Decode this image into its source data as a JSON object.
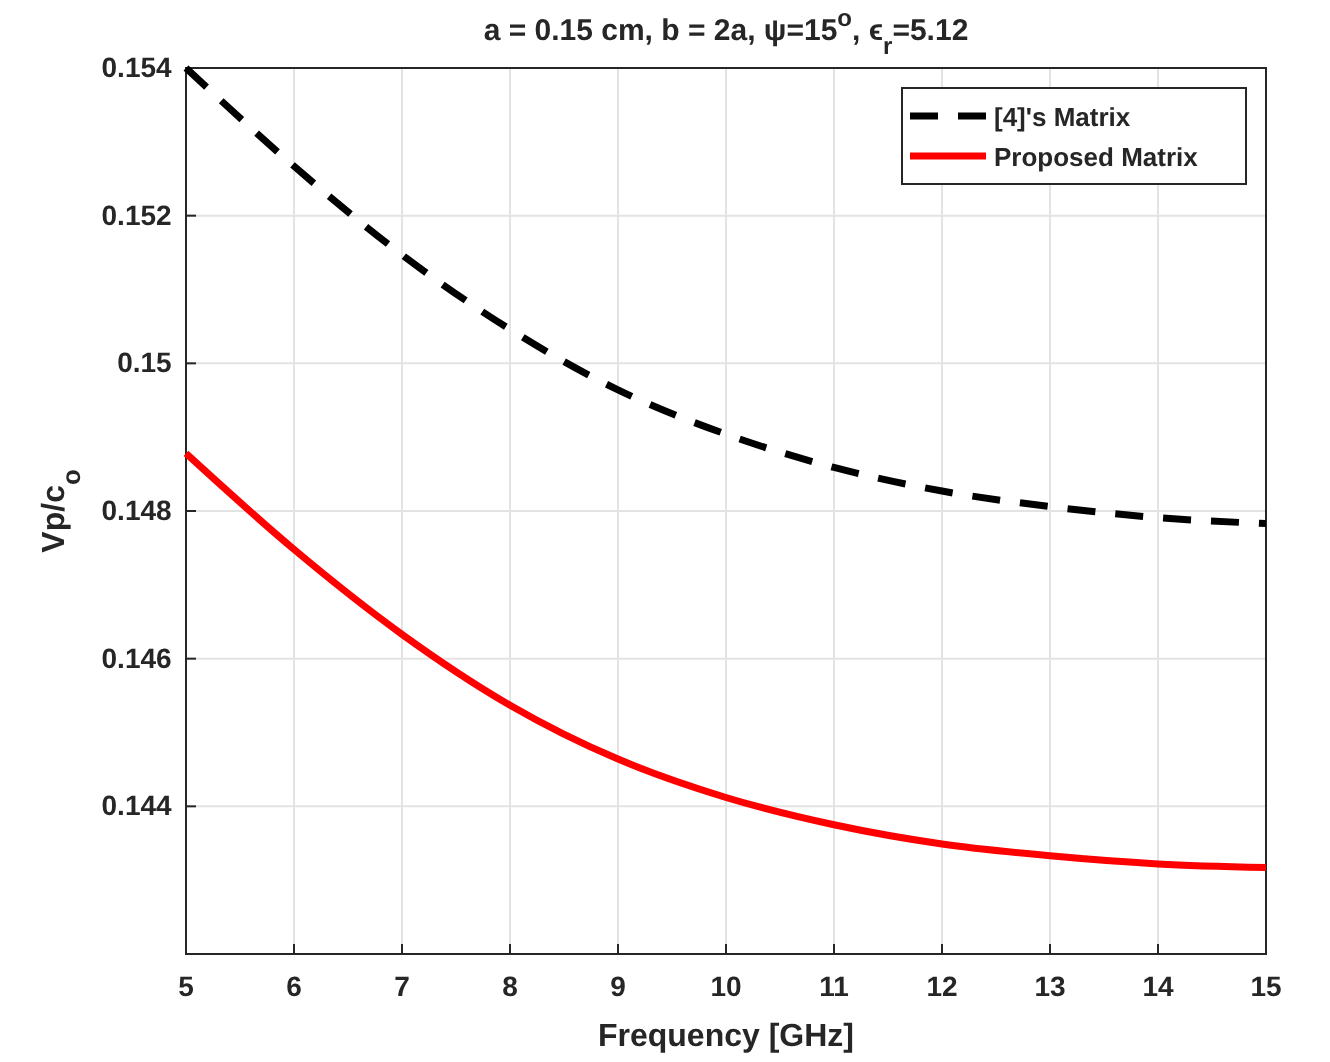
{
  "chart_data": {
    "type": "line",
    "title": "a = 0.15 cm, b = 2a, ψ=15$^{o}$, ϵ$_{r}$=5.12",
    "xlabel": "Frequency [GHz]",
    "ylabel": "Vp/c$_{o}$",
    "x": [
      5,
      6,
      7,
      8,
      9,
      10,
      11,
      12,
      13,
      14,
      15
    ],
    "series": [
      {
        "name": "[4]'s Matrix",
        "color": "#000000",
        "line_style": "dashed",
        "values": [
          0.154,
          0.15267,
          0.15147,
          0.15046,
          0.14964,
          0.14904,
          0.14859,
          0.14827,
          0.14806,
          0.14791,
          0.14783
        ]
      },
      {
        "name": "Proposed Matrix",
        "color": "#ff0000",
        "line_style": "solid",
        "values": [
          0.14878,
          0.14748,
          0.14633,
          0.14537,
          0.14464,
          0.14412,
          0.14375,
          0.14349,
          0.14333,
          0.14322,
          0.14317
        ]
      }
    ],
    "xlim": [
      5,
      15
    ],
    "xticks": [
      5,
      6,
      7,
      8,
      9,
      10,
      11,
      12,
      13,
      14,
      15
    ],
    "ylim": [
      0.142,
      0.154
    ],
    "yticks": [
      0.144,
      0.146,
      0.148,
      0.15,
      0.152,
      0.154
    ],
    "grid": true,
    "legend": "top right"
  }
}
